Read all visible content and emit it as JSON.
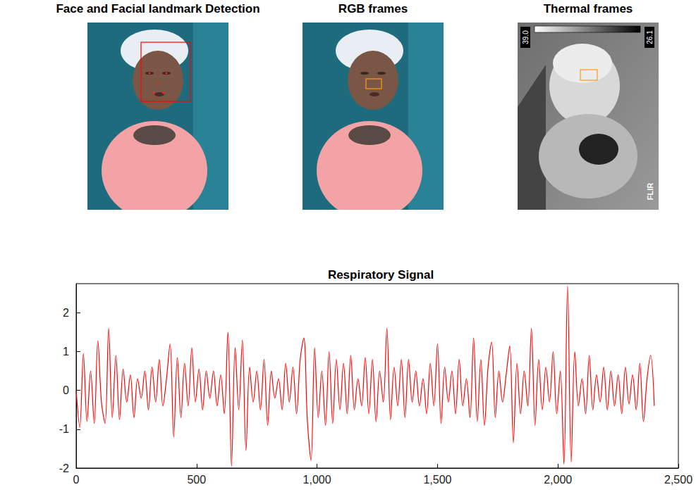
{
  "chart_data": {
    "type": "line",
    "title": "Respiratory Signal",
    "color": "#ff0000",
    "x": [
      0,
      15,
      30,
      45,
      60,
      75,
      90,
      105,
      120,
      135,
      150,
      165,
      180,
      195,
      210,
      225,
      240,
      255,
      270,
      285,
      300,
      315,
      330,
      345,
      360,
      375,
      390,
      405,
      420,
      435,
      450,
      465,
      480,
      495,
      510,
      525,
      540,
      555,
      570,
      585,
      600,
      615,
      630,
      645,
      660,
      675,
      690,
      705,
      720,
      735,
      750,
      765,
      780,
      795,
      810,
      825,
      840,
      855,
      870,
      885,
      900,
      915,
      930,
      945,
      960,
      975,
      990,
      1005,
      1020,
      1035,
      1050,
      1065,
      1080,
      1095,
      1110,
      1125,
      1140,
      1155,
      1170,
      1185,
      1200,
      1215,
      1230,
      1245,
      1260,
      1275,
      1290,
      1305,
      1320,
      1335,
      1350,
      1365,
      1380,
      1395,
      1410,
      1425,
      1440,
      1455,
      1470,
      1485,
      1500,
      1515,
      1530,
      1545,
      1560,
      1575,
      1590,
      1605,
      1620,
      1635,
      1650,
      1665,
      1680,
      1695,
      1710,
      1725,
      1740,
      1755,
      1770,
      1785,
      1800,
      1815,
      1830,
      1845,
      1860,
      1875,
      1890,
      1905,
      1920,
      1935,
      1950,
      1965,
      1980,
      1995,
      2010,
      2025,
      2040,
      2055,
      2070,
      2085,
      2100,
      2115,
      2130,
      2145,
      2160,
      2175,
      2190,
      2205,
      2220,
      2235,
      2250,
      2265,
      2280,
      2295,
      2310,
      2325,
      2340,
      2355,
      2370,
      2385,
      2400
    ],
    "values": [
      0,
      -0.95,
      0.95,
      -0.8,
      0.5,
      -0.85,
      1.28,
      -0.3,
      -0.85,
      1.6,
      -0.7,
      0.9,
      -0.75,
      0.55,
      -0.3,
      0.4,
      -0.7,
      0.3,
      -0.2,
      0.5,
      -0.5,
      0.6,
      -0.3,
      0.8,
      -0.4,
      0.3,
      1.2,
      -1.2,
      0.85,
      -0.7,
      0.7,
      -0.4,
      1.1,
      -0.3,
      0.55,
      -0.5,
      0.5,
      -0.2,
      0.5,
      -0.4,
      0.4,
      -0.6,
      1.5,
      -1.95,
      1.1,
      -0.5,
      1.3,
      -1.55,
      0.6,
      -0.3,
      0.5,
      -0.5,
      0.8,
      -0.9,
      0.5,
      -0.2,
      0.3,
      -0.5,
      0.7,
      -0.3,
      0.6,
      -0.6,
      0.8,
      1.35,
      -0.8,
      -1.8,
      1.1,
      -0.7,
      0.5,
      -0.9,
      1.0,
      -0.85,
      0.8,
      -0.5,
      0.7,
      -0.6,
      0.9,
      -0.5,
      0.3,
      -0.4,
      0.85,
      -0.6,
      0.8,
      -0.8,
      0.5,
      -0.3,
      1.6,
      -0.75,
      0.6,
      -0.4,
      0.8,
      -0.7,
      0.8,
      -0.3,
      0.5,
      -0.4,
      0.3,
      -0.6,
      0.7,
      -0.4,
      1.2,
      -0.85,
      0.6,
      -0.3,
      0.5,
      -0.6,
      0.8,
      -0.4,
      0.3,
      -0.7,
      1.35,
      -0.8,
      0.8,
      -0.9,
      0.6,
      1.25,
      -0.7,
      0.5,
      -0.3,
      0.4,
      1.15,
      -1.35,
      0.7,
      -0.6,
      0.5,
      -0.4,
      1.6,
      -0.9,
      0.8,
      -0.5,
      0.6,
      -0.3,
      1.0,
      -0.6,
      0.5,
      -1.9,
      2.7,
      -1.85,
      1.0,
      -0.4,
      0.3,
      -0.6,
      0.9,
      -0.5,
      0.4,
      -0.3,
      0.6,
      -0.5,
      0.5,
      -0.4,
      0.4,
      -0.6,
      0.6,
      -0.35,
      0.4,
      -0.5,
      0.7,
      -0.8,
      0.3,
      0.9,
      -0.4
    ],
    "xlim": [
      0,
      2500
    ],
    "xticks": [
      0,
      500,
      1000,
      1500,
      2000,
      2500
    ],
    "ylim": [
      -2,
      2.75
    ],
    "yticks": [
      -2,
      -1,
      0,
      1,
      2
    ],
    "grid": false
  },
  "image_panels": [
    {
      "title": "Face and Facial landmark Detection"
    },
    {
      "title": "RGB frames"
    },
    {
      "title": "Thermal frames",
      "scale_labels": [
        "39.0",
        "26.1"
      ],
      "logo": "FLIR"
    }
  ]
}
